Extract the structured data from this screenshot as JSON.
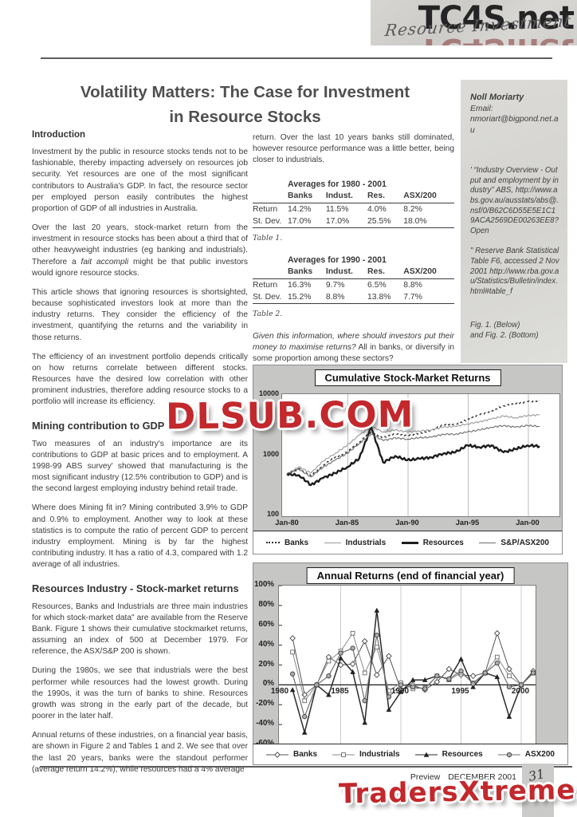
{
  "header": {
    "script_title": "Resource Investment",
    "site_watermark": "TC4S.net"
  },
  "watermarks": {
    "center": "DLSUB.COM",
    "footer": "TradersXtreme.com"
  },
  "article": {
    "title_line1": "Volatility Matters: The Case for Investment",
    "title_line2": "in Resource Stocks",
    "intro_heading": "Introduction",
    "p1": "Investment by the public in resource stocks tends not to be fashionable, thereby impacting adversely on resources job security. Yet resources are one of the most significant contributors to Australia's GDP. In fact, the resource sector per employed person easily contributes the highest proportion of GDP of all industries in Australia.",
    "p2a": "Over the last 20 years, stock-market return from the investment in resource stocks has been about a third that of other heavyweight industries (eg banking and industrials). Therefore a ",
    "p2b": "fait accompli",
    "p2c": " might be that public investors would ignore resource stocks.",
    "p3": "This article shows that ignoring resources is shortsighted, because sophisticated investors look at more than the industry returns. They consider the efficiency of the investment, quantifying the returns and the variability in those returns.",
    "p4": "The efficiency of an investment portfolio depends critically on how returns correlate between different stocks. Resources have the desired low correlation with other prominent industries, therefore adding resource stocks to a portfolio will increase its efficiency.",
    "mining_heading": "Mining contribution to GDP",
    "p5": "Two measures of an industry's importance are its contributions to GDP at basic prices and to employment. A 1998-99 ABS survey' showed that manufacturing is the most significant industry (12.5% contribution to GDP) and is the second largest employing industry behind retail trade.",
    "p6": "Where does Mining fit in? Mining contributed 3.9% to GDP and 0.9% to employment. Another way to look at these statistics is to compute the ratio of percent GDP to percent industry employment. Mining is by far the highest contributing industry. It has a ratio of 4.3, compared with 1.2 average of all industries.",
    "resources_heading": "Resources Industry - Stock-market returns",
    "p7": "Resources, Banks and Industrials are three main industries for which stock-market data\" are available from the Reserve Bank. Figure 1 shows their cumulative stockmarket returns, assuming an index of 500 at December 1979. For reference, the ASX/S&P 200 is shown.",
    "p8": "During the 1980s, we see that industrials were the best performer while resources had the lowest growth. During the 1990s, it was the turn of banks to shine. Resources growth was strong in the early part of the decade, but poorer in the later half.",
    "p9": "Annual returns of these industries, on a financial year basis, are shown in Figure 2 and Tables 1 and 2. We see that over the last 20 years, banks were the standout performer (average return 14.2%), while resources had a 4% average",
    "col2_p1": "return. Over the last 10 years banks still dominated, however resource performance was a little better, being closer to industrials.",
    "question_italic": "Given this information, where should investors put their money to maximise returns?",
    "question_rest": " All in banks, or diversify in some proportion among these sectors?"
  },
  "tables": [
    {
      "title": "Averages for 1980 - 2001",
      "columns": [
        "Banks",
        "Indust.",
        "Res.",
        "ASX/200"
      ],
      "rows": [
        [
          "Return",
          "14.2%",
          "11.5%",
          "4.0%",
          "8.2%"
        ],
        [
          "St. Dev.",
          "17.0%",
          "17.0%",
          "25.5%",
          "18.0%"
        ]
      ],
      "caption": "Table 1."
    },
    {
      "title": "Averages for 1990 - 2001",
      "columns": [
        "Banks",
        "Indust.",
        "Res.",
        "ASX/200"
      ],
      "rows": [
        [
          "Return",
          "16.3%",
          "9.7%",
          "6.5%",
          "8.8%"
        ],
        [
          "St. Dev.",
          "15.2%",
          "8.8%",
          "13.8%",
          "7.7%"
        ]
      ],
      "caption": "Table 2."
    }
  ],
  "sidebar": {
    "author": "Noll Moriarty",
    "email_label": "Email:",
    "email": "nmoriart@bigpond.net.au",
    "footnote1": "' “Industry Overview - Output and employment by industry” ABS, http://www.abs.gov.au/ausstats/abs@.nsf/0/B62C6D55E5E1C19ACA2569DE00263EE8?Open",
    "footnote2": "\" Reserve Bank Statistical Table F6, accessed 2 Nov 2001 http://www.rba.gov.au/Statistics/Bulletin/index.html#table_f",
    "fig_caption_1": "Fig. 1. (Below)",
    "fig_caption_2": "and Fig. 2. (Bottom)"
  },
  "footer": {
    "preview_label": "Preview",
    "issue": "DECEMBER 2001",
    "page_number": "31"
  },
  "chart_data": [
    {
      "type": "line",
      "title": "Cumulative Stock-Market Returns",
      "yscale": "log",
      "ylim": [
        100,
        10000
      ],
      "yticks": [
        10000,
        1000,
        100
      ],
      "xticks": [
        "Jan-80",
        "Jan-85",
        "Jan-90",
        "Jan-95",
        "Jan-00"
      ],
      "x_years": [
        1980,
        1981,
        1982,
        1983,
        1984,
        1985,
        1986,
        1987,
        1988,
        1989,
        1990,
        1991,
        1992,
        1993,
        1994,
        1995,
        1996,
        1997,
        1998,
        1999,
        2000,
        2001
      ],
      "start_index_note": "index of 500 at December 1979",
      "legend_position": "bottom",
      "grid": "vertical",
      "series": [
        {
          "name": "Banks",
          "line_style": "dotted",
          "color": "#2f2f2f",
          "width": 1.4,
          "dash": "3,3",
          "values": [
            500,
            620,
            470,
            700,
            950,
            1150,
            1700,
            2500,
            2000,
            2300,
            2200,
            2400,
            2600,
            3300,
            3400,
            4000,
            4800,
            5600,
            6800,
            7300,
            8000,
            8300
          ]
        },
        {
          "name": "Industrials",
          "line_style": "thin",
          "color": "#9a9a9a",
          "width": 1.1,
          "values": [
            500,
            660,
            520,
            820,
            1100,
            1500,
            2200,
            3100,
            2500,
            2700,
            2500,
            2600,
            2700,
            3000,
            3100,
            3400,
            3700,
            4100,
            4600,
            4300,
            4700,
            4800
          ]
        },
        {
          "name": "Resources",
          "line_style": "thick",
          "color": "#1d1d1d",
          "width": 2.4,
          "values": [
            500,
            480,
            330,
            430,
            520,
            650,
            900,
            3000,
            780,
            1000,
            850,
            900,
            950,
            1100,
            1150,
            1500,
            1400,
            1500,
            1150,
            1300,
            1500,
            1450
          ]
        },
        {
          "name": "S&P/ASX200",
          "line_style": "medium",
          "color": "#6b6b6b",
          "width": 1.1,
          "values": [
            500,
            600,
            450,
            650,
            850,
            1100,
            1600,
            2300,
            1800,
            2000,
            1900,
            2000,
            2050,
            2300,
            2300,
            2500,
            2700,
            3000,
            3200,
            3000,
            3200,
            3100
          ]
        }
      ]
    },
    {
      "type": "line",
      "title": "Annual Returns (end of financial year)",
      "ylim": [
        -60,
        100
      ],
      "yticks": [
        100,
        80,
        60,
        40,
        20,
        0,
        -20,
        -40,
        -60
      ],
      "ytick_suffix": "%",
      "xticks": [
        1980,
        1985,
        1990,
        1995,
        2000
      ],
      "x_years": [
        1981,
        1982,
        1983,
        1984,
        1985,
        1986,
        1987,
        1988,
        1989,
        1990,
        1991,
        1992,
        1993,
        1994,
        1995,
        1996,
        1997,
        1998,
        1999,
        2000,
        2001
      ],
      "legend_position": "bottom",
      "grid": "vertical",
      "series": [
        {
          "name": "Banks",
          "marker": "diamond",
          "color": "#555555",
          "width": 1,
          "values": [
            47,
            -10,
            0,
            28,
            20,
            21,
            44,
            10,
            29,
            -5,
            0,
            -5,
            3,
            16,
            10,
            9,
            12,
            52,
            16,
            0,
            14
          ]
        },
        {
          "name": "Industrials",
          "marker": "square",
          "color": "#8a8a8a",
          "width": 1,
          "values": [
            33,
            -16,
            0,
            24,
            34,
            52,
            12,
            38,
            -6,
            2,
            -4,
            -3,
            9,
            5,
            12,
            2,
            12,
            28,
            9,
            0,
            12
          ]
        },
        {
          "name": "Resources",
          "marker": "triangle",
          "color": "#2a2a2a",
          "width": 1.5,
          "values": [
            -5,
            -48,
            0,
            -10,
            27,
            13,
            -38,
            75,
            -25,
            -7,
            5,
            5,
            9,
            6,
            26,
            -2,
            12,
            8,
            -32,
            0,
            12
          ]
        },
        {
          "name": "ASX200",
          "marker": "circle",
          "color": "#707070",
          "width": 1.2,
          "values": [
            11,
            -32,
            0,
            9,
            32,
            37,
            -16,
            50,
            -12,
            0,
            -2,
            -4,
            9,
            6,
            14,
            1,
            12,
            22,
            -2,
            0,
            12
          ]
        }
      ]
    }
  ]
}
